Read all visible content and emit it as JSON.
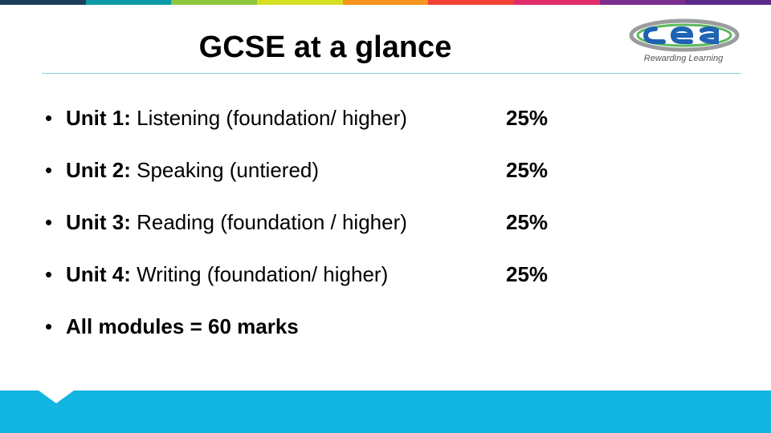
{
  "stripe_colors": [
    "#1c3f5c",
    "#0d9aa8",
    "#8dc63f",
    "#d7df23",
    "#f7941d",
    "#ef4136",
    "#e12b6a",
    "#7a2d8c",
    "#5b2a86"
  ],
  "title": "GCSE at a glance",
  "logo": {
    "name": "cea-logo",
    "text": "cea",
    "tagline": "Rewarding Learning",
    "colors": {
      "grey": "#9a9c9e",
      "green": "#5cb85c",
      "blue": "#1e63b4"
    }
  },
  "units": [
    {
      "label": "Unit 1:",
      "text": " Listening (foundation/ higher)",
      "weight": "25%"
    },
    {
      "label": "Unit 2:",
      "text": " Speaking (untiered)",
      "weight": "25%"
    },
    {
      "label": "Unit 3:",
      "text": " Reading (foundation / higher)",
      "weight": "25%"
    },
    {
      "label": "Unit 4:",
      "text": " Writing (foundation/ higher)",
      "weight": "25%"
    }
  ],
  "summary": "All modules = 60 marks",
  "bullet_symbol": "•",
  "footer_color": "#12b5e0"
}
